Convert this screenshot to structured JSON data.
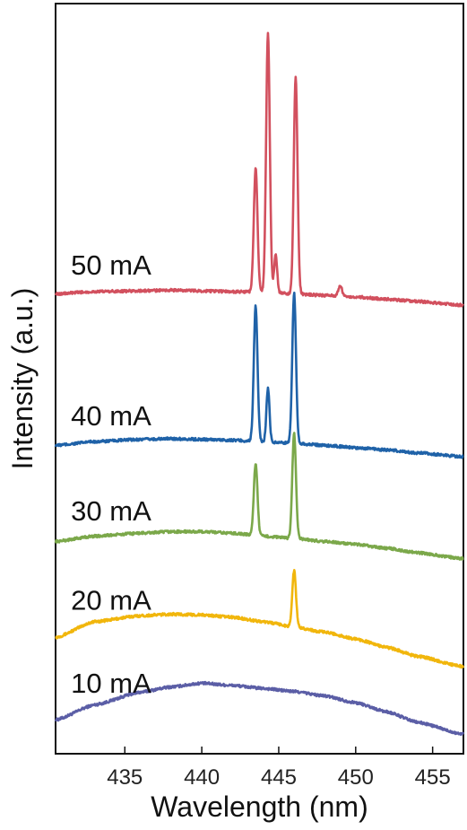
{
  "chart_data": {
    "type": "line",
    "title": "",
    "xlabel": "Wavelength (nm)",
    "ylabel": "Intensity (a.u.)",
    "xlim": [
      430.5,
      457
    ],
    "ylim": [
      0,
      100
    ],
    "xticks": [
      435,
      440,
      445,
      450,
      455
    ],
    "yticks_shown": false,
    "grid": false,
    "legend": "none",
    "series": [
      {
        "name": "10 mA",
        "color": "#5B5EA6",
        "baseline": {
          "x": [
            430.5,
            433,
            436,
            438,
            440,
            442,
            444,
            446,
            448,
            450,
            452,
            454,
            457
          ],
          "y": [
            4.5,
            6.5,
            8.2,
            8.9,
            9.4,
            9.1,
            8.7,
            8.3,
            7.7,
            6.8,
            5.6,
            4.2,
            2.6
          ]
        },
        "peaks": []
      },
      {
        "name": "20 mA",
        "color": "#F1B60C",
        "baseline": {
          "x": [
            430.5,
            433,
            436,
            438,
            440,
            442,
            444,
            446,
            448,
            450,
            452,
            454,
            457
          ],
          "y": [
            15.5,
            17.6,
            18.4,
            18.6,
            18.5,
            18.2,
            17.6,
            16.9,
            16.2,
            15.3,
            14.2,
            13.0,
            11.6
          ]
        },
        "peaks": [
          {
            "x": 446.0,
            "height": 7.5,
            "width": 0.12
          }
        ]
      },
      {
        "name": "30 mA",
        "color": "#7BA84A",
        "baseline": {
          "x": [
            430.5,
            433,
            436,
            438,
            440,
            442,
            444,
            446,
            448,
            450,
            452,
            454,
            457
          ],
          "y": [
            28.3,
            29.0,
            29.4,
            29.6,
            29.6,
            29.4,
            29.0,
            28.7,
            28.3,
            27.9,
            27.4,
            26.8,
            26.0
          ]
        },
        "peaks": [
          {
            "x": 443.5,
            "height": 9.6,
            "width": 0.12
          },
          {
            "x": 446.0,
            "height": 14.0,
            "width": 0.12
          }
        ]
      },
      {
        "name": "40 mA",
        "color": "#1F62A8",
        "baseline": {
          "x": [
            430.5,
            433,
            436,
            438,
            440,
            442,
            444,
            446,
            448,
            450,
            452,
            454,
            457
          ],
          "y": [
            41.1,
            41.6,
            41.9,
            42.0,
            41.9,
            41.8,
            41.6,
            41.4,
            41.1,
            40.8,
            40.5,
            40.1,
            39.6
          ]
        },
        "peaks": [
          {
            "x": 443.5,
            "height": 18.0,
            "width": 0.12
          },
          {
            "x": 444.3,
            "height": 7.1,
            "width": 0.1
          },
          {
            "x": 446.0,
            "height": 20.0,
            "width": 0.12
          }
        ]
      },
      {
        "name": "50 mA",
        "color": "#D2505E",
        "baseline": {
          "x": [
            430.5,
            433,
            436,
            438,
            440,
            442,
            444,
            446,
            448,
            450,
            452,
            454,
            457
          ],
          "y": [
            61.3,
            61.6,
            61.7,
            61.8,
            61.7,
            61.6,
            61.5,
            61.3,
            61.1,
            60.9,
            60.6,
            60.3,
            59.8
          ]
        },
        "peaks": [
          {
            "x": 443.5,
            "height": 16.5,
            "width": 0.12
          },
          {
            "x": 444.3,
            "height": 34.5,
            "width": 0.12
          },
          {
            "x": 444.8,
            "height": 5.0,
            "width": 0.1
          },
          {
            "x": 446.1,
            "height": 29.0,
            "width": 0.12
          },
          {
            "x": 449.0,
            "height": 1.4,
            "width": 0.12
          }
        ]
      }
    ]
  }
}
